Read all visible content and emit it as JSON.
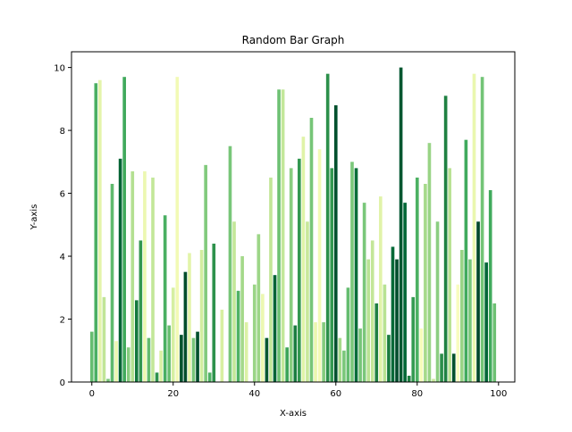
{
  "chart_data": {
    "type": "bar",
    "title": "Random Bar Graph",
    "xlabel": "X-axis",
    "ylabel": "Y-axis",
    "xlim": [
      -5,
      104
    ],
    "ylim": [
      0,
      10.5
    ],
    "xticks": [
      0,
      20,
      40,
      60,
      80,
      100
    ],
    "yticks": [
      0,
      2,
      4,
      6,
      8,
      10
    ],
    "grid": false,
    "colormap": "YlGn",
    "x": [
      0,
      1,
      2,
      3,
      4,
      5,
      6,
      7,
      8,
      9,
      10,
      11,
      12,
      13,
      14,
      15,
      16,
      17,
      18,
      19,
      20,
      21,
      22,
      23,
      24,
      25,
      26,
      27,
      28,
      29,
      30,
      31,
      32,
      33,
      34,
      35,
      36,
      37,
      38,
      39,
      40,
      41,
      42,
      43,
      44,
      45,
      46,
      47,
      48,
      49,
      50,
      51,
      52,
      53,
      54,
      55,
      56,
      57,
      58,
      59,
      60,
      61,
      62,
      63,
      64,
      65,
      66,
      67,
      68,
      69,
      70,
      71,
      72,
      73,
      74,
      75,
      76,
      77,
      78,
      79,
      80,
      81,
      82,
      83,
      84,
      85,
      86,
      87,
      88,
      89,
      90,
      91,
      92,
      93,
      94,
      95,
      96,
      97,
      98,
      99
    ],
    "values": [
      1.6,
      9.5,
      9.6,
      2.7,
      0.1,
      6.3,
      1.3,
      7.1,
      9.7,
      1.1,
      6.7,
      2.6,
      4.5,
      6.7,
      1.4,
      6.5,
      0.3,
      1.0,
      5.3,
      1.8,
      3.0,
      9.7,
      1.5,
      3.5,
      4.1,
      1.4,
      1.6,
      4.2,
      6.9,
      0.3,
      4.4,
      0.0,
      2.3,
      0.0,
      7.5,
      5.1,
      2.9,
      4.0,
      1.9,
      0.0,
      3.1,
      4.7,
      2.8,
      1.4,
      6.5,
      3.4,
      9.3,
      9.3,
      1.1,
      6.8,
      1.8,
      7.1,
      7.8,
      5.1,
      8.4,
      1.9,
      7.4,
      1.9,
      9.8,
      6.8,
      8.8,
      1.4,
      1.0,
      3.0,
      7.0,
      6.8,
      1.7,
      5.7,
      3.9,
      4.5,
      2.5,
      5.9,
      3.1,
      1.5,
      4.3,
      3.9,
      10.0,
      5.7,
      0.2,
      2.7,
      6.5,
      1.7,
      6.3,
      7.6,
      0.1,
      5.1,
      0.9,
      9.1,
      6.8,
      0.9,
      3.1,
      4.2,
      7.7,
      3.9,
      9.8,
      5.1,
      9.7,
      3.8,
      6.1,
      2.5
    ]
  }
}
